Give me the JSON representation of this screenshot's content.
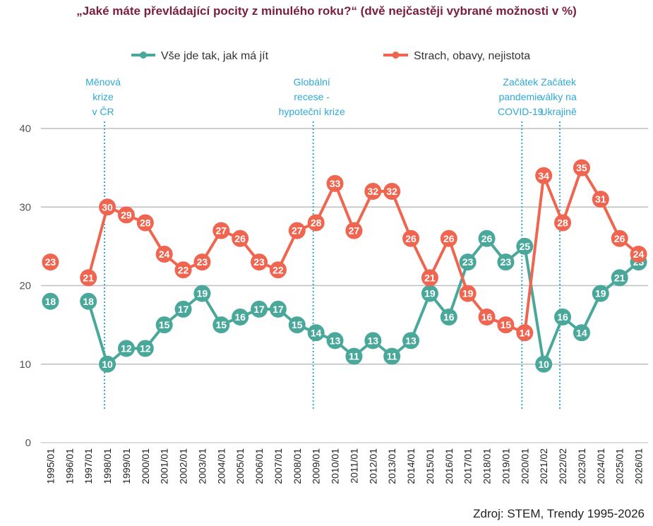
{
  "title": "„Jaké máte převládající pocity z minulého roku?“ (dvě nejčastěji vybrané možnosti v %)",
  "source": "Zdroj: STEM, Trendy 1995-2026",
  "chart_data": {
    "type": "line",
    "title": "„Jaké máte převládající pocity z minulého roku?“ (dvě nejčastěji vybrané možnosti v %)",
    "xlabel": "",
    "ylabel": "",
    "ylim": [
      0,
      40
    ],
    "yticks": [
      0,
      10,
      20,
      30,
      40
    ],
    "grid": true,
    "legend": "top",
    "categories": [
      "1995/01",
      "1996/01",
      "1997/01",
      "1998/01",
      "1999/01",
      "2000/01",
      "2001/01",
      "2002/01",
      "2003/01",
      "2004/01",
      "2005/01",
      "2006/01",
      "2007/01",
      "2008/01",
      "2009/01",
      "2010/01",
      "2011/01",
      "2012/01",
      "2013/01",
      "2014/01",
      "2015/01",
      "2016/01",
      "2017/01",
      "2018/01",
      "2019/01",
      "2020/01",
      "2021/02",
      "2022/02",
      "2023/01",
      "2024/01",
      "2025/01",
      "2026/01"
    ],
    "series": [
      {
        "name": "Vše jde tak, jak má jít",
        "color": "#4aa89a",
        "values": [
          18,
          null,
          18,
          10,
          12,
          12,
          15,
          17,
          19,
          15,
          16,
          17,
          17,
          15,
          14,
          13,
          11,
          13,
          11,
          13,
          19,
          16,
          23,
          26,
          23,
          25,
          10,
          16,
          14,
          19,
          21,
          23
        ]
      },
      {
        "name": "Strach, obavy, nejistota",
        "color": "#f0654f",
        "values": [
          23,
          null,
          21,
          30,
          29,
          28,
          24,
          22,
          23,
          27,
          26,
          23,
          22,
          27,
          28,
          33,
          27,
          32,
          32,
          26,
          21,
          26,
          19,
          16,
          15,
          14,
          34,
          28,
          35,
          31,
          26,
          24
        ]
      }
    ],
    "annotations": [
      {
        "at": "1998/01",
        "lines": [
          "Měnová",
          "krize",
          "v ČR"
        ]
      },
      {
        "at": "2009/01",
        "lines": [
          "Globální",
          "recese -",
          "hypoteční krize"
        ]
      },
      {
        "at": "2020/01",
        "lines": [
          "Začátek",
          "pandemie",
          "COVID-19"
        ]
      },
      {
        "at": "2022/02",
        "lines": [
          "Začátek",
          "války na",
          "Ukrajině"
        ]
      }
    ]
  }
}
